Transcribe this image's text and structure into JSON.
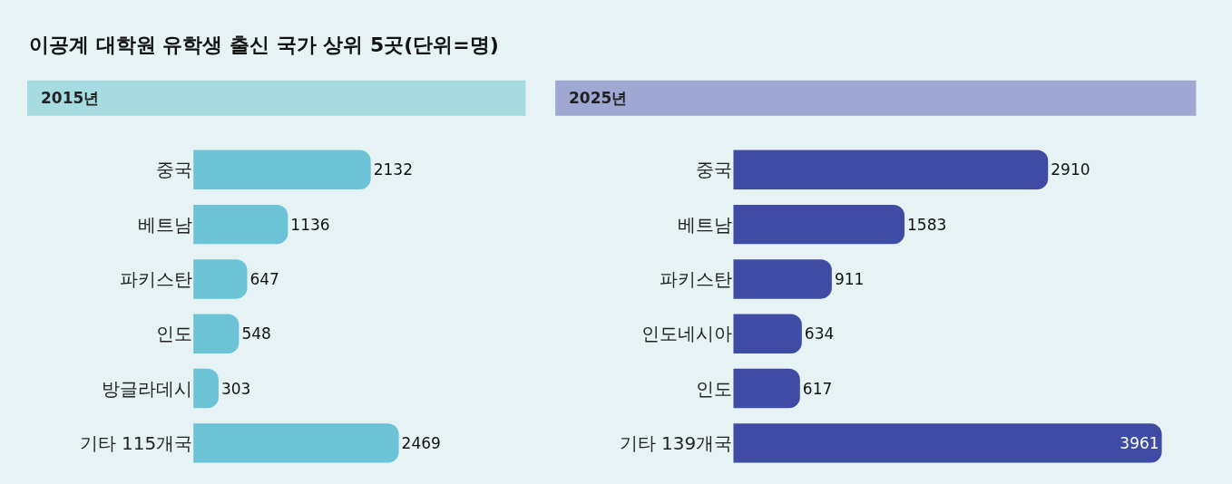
{
  "chart_data": [
    {
      "type": "bar",
      "orientation": "horizontal",
      "title": "이공계 대학원 유학생 출신 국가 상위 5곳(단위=명)",
      "subtitle": "2015년",
      "categories": [
        "중국",
        "베트남",
        "파키스탄",
        "인도",
        "방글라데시",
        "기타 115개국"
      ],
      "values": [
        2132,
        1136,
        647,
        548,
        303,
        2469
      ],
      "color": "#6cc3d5",
      "data_labels": true,
      "tick_labels": "y"
    },
    {
      "type": "bar",
      "orientation": "horizontal",
      "subtitle": "2025년",
      "categories": [
        "중국",
        "베트남",
        "파키스탄",
        "인도네시아",
        "인도",
        "기타 139개국"
      ],
      "values": [
        2910,
        1583,
        911,
        634,
        617,
        3961
      ],
      "color": "#3f4ca3",
      "data_labels": true,
      "tick_labels": "y"
    }
  ]
}
